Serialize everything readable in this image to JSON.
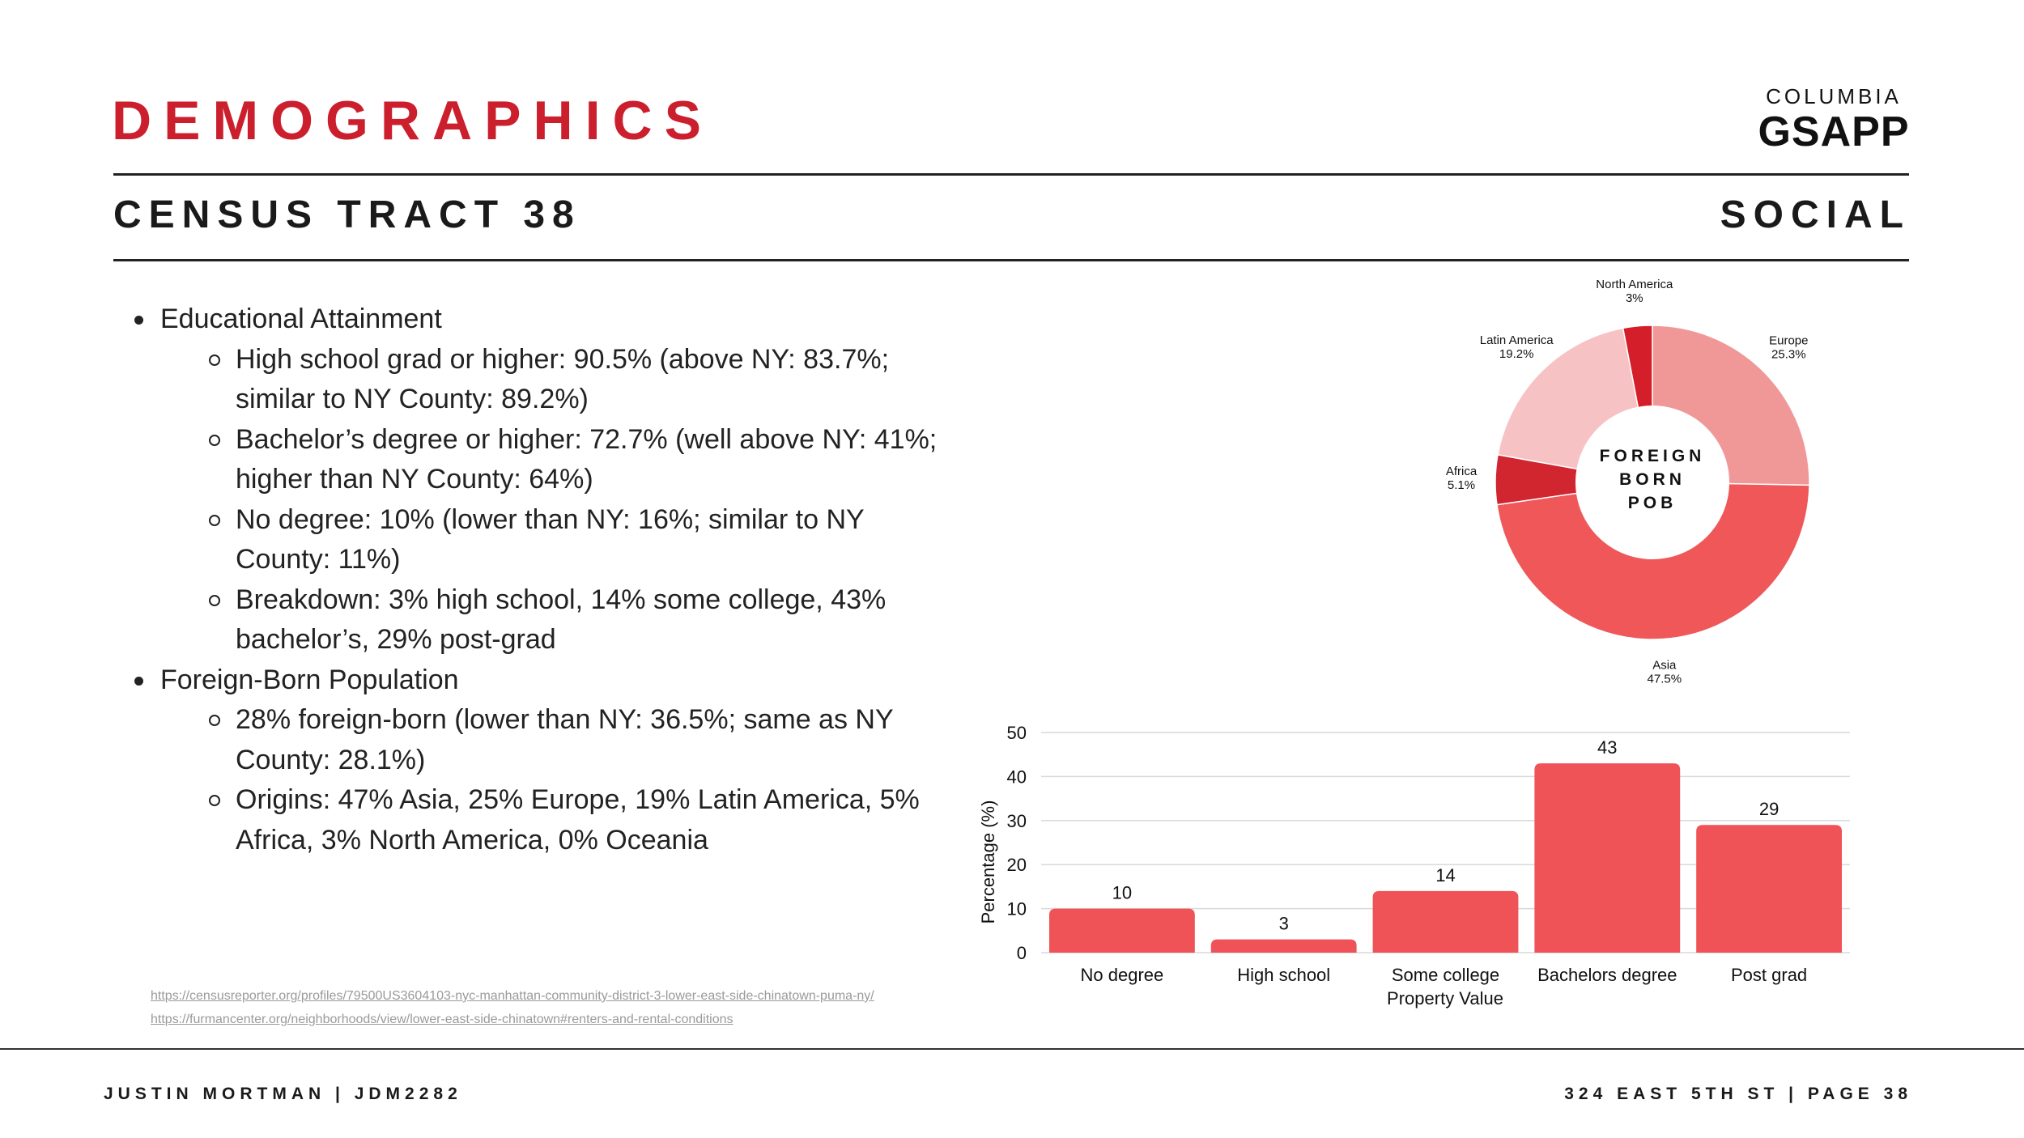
{
  "header": {
    "title": "DEMOGRAPHICS",
    "logo_top": "COLUMBIA",
    "logo_main": "GSAPP",
    "subtitle_left": "CENSUS TRACT 38",
    "subtitle_right": "SOCIAL"
  },
  "bullets": [
    {
      "label": "Educational Attainment",
      "items": [
        "High school grad or higher: 90.5% (above NY: 83.7%; similar to NY County: 89.2%)",
        "Bachelor’s degree or higher: 72.7% (well above NY: 41%; higher than NY County: 64%)",
        "No degree: 10% (lower than NY: 16%; similar to NY County: 11%)",
        "Breakdown: 3% high school, 14% some college, 43% bachelor’s, 29% post-grad"
      ]
    },
    {
      "label": "Foreign-Born Population",
      "items": [
        "28% foreign-born (lower than NY: 36.5%; same as NY County: 28.1%)",
        "Origins: 47% Asia, 25% Europe, 19% Latin America, 5% Africa, 3% North America, 0% Oceania"
      ]
    }
  ],
  "sources": [
    "https://censusreporter.org/profiles/79500US3604103-nyc-manhattan-community-district-3-lower-east-side-chinatown-puma-ny/",
    "https://furmancenter.org/neighborhoods/view/lower-east-side-chinatown#renters-and-rental-conditions"
  ],
  "footer": {
    "left": "JUSTIN MORTMAN | JDM2282",
    "right": "324 EAST 5TH ST | PAGE 38"
  },
  "chart_data": [
    {
      "type": "pie",
      "style": "donut",
      "center_label": [
        "FOREIGN",
        "BORN",
        "POB"
      ],
      "slices": [
        {
          "label": "Europe",
          "pct_label": "25.3%",
          "value": 25.3,
          "color": "#f09898"
        },
        {
          "label": "Asia",
          "pct_label": "47.5%",
          "value": 47.5,
          "color": "#ef5759"
        },
        {
          "label": "Africa",
          "pct_label": "5.1%",
          "value": 5.1,
          "color": "#d12530"
        },
        {
          "label": "Latin America",
          "pct_label": "19.2%",
          "value": 19.2,
          "color": "#f7c2c4"
        },
        {
          "label": "North America",
          "pct_label": "3%",
          "value": 3,
          "color": "#d41f2a"
        }
      ]
    },
    {
      "type": "bar",
      "categories": [
        "No degree",
        "High school",
        "Some college",
        "Bachelors degree",
        "Post grad"
      ],
      "values": [
        10,
        3,
        14,
        43,
        29
      ],
      "xlabel": "Property Value",
      "ylabel": "Percentage (%)",
      "ylim": [
        0,
        50
      ],
      "yticks": [
        "0",
        "10",
        "20",
        "30",
        "40",
        "50"
      ],
      "color": "#ef5257"
    }
  ]
}
